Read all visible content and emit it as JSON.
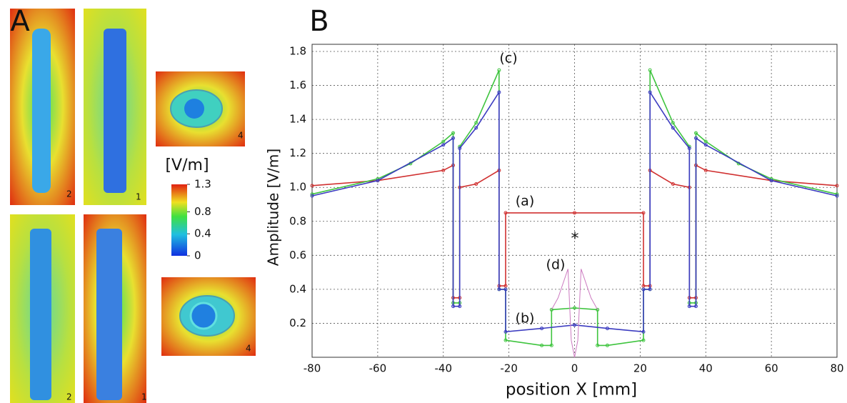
{
  "panel_a": {
    "label": "A",
    "colorbar": {
      "unit": "[V/m]",
      "lim": [
        0,
        1.3
      ],
      "ticks": [
        {
          "value": 1.3,
          "label": "1.3"
        },
        {
          "value": 0.8,
          "label": "0.8"
        },
        {
          "value": 0.4,
          "label": "0.4"
        },
        0
      ]
    },
    "image_labels": [
      "2",
      "1",
      "4",
      "2",
      "1",
      "4"
    ]
  },
  "chart_data": {
    "type": "line",
    "panel_label": "B",
    "x_label": "position X [mm]",
    "y_label": "Amplitude [V/m]",
    "xlim": [
      -80,
      80
    ],
    "xticks": [
      -80,
      -60,
      -40,
      -20,
      0,
      20,
      40,
      60,
      80
    ],
    "ylim": [
      0,
      1.8
    ],
    "yticks": [
      0.2,
      0.4,
      0.6,
      0.8,
      {
        "value": 1,
        "label": "1.0"
      },
      1.2,
      1.4,
      1.6,
      1.8
    ],
    "grid": true,
    "annotations": [
      "(a)",
      "(b)",
      "(c)",
      "(d)",
      "*"
    ],
    "series": [
      {
        "name": "(a)",
        "color": "#d03030",
        "x": [
          -80,
          -60,
          -40,
          -37,
          -37,
          -35,
          -35,
          -30,
          -23,
          -23,
          -21,
          -21,
          0,
          21,
          21,
          23,
          23,
          30,
          35,
          35,
          37,
          37,
          40,
          60,
          80
        ],
        "values": [
          1.01,
          1.04,
          1.1,
          1.13,
          0.35,
          0.35,
          1.0,
          1.02,
          1.1,
          0.42,
          0.42,
          0.85,
          0.85,
          0.85,
          0.42,
          0.42,
          1.1,
          1.02,
          1.0,
          0.35,
          0.35,
          1.13,
          1.1,
          1.04,
          1.01
        ]
      },
      {
        "name": "(c)",
        "color": "#3ec43e",
        "x": [
          -80,
          -60,
          -50,
          -40,
          -37,
          -37,
          -35,
          -35,
          -30,
          -23,
          -23,
          -21,
          -21,
          -10,
          -7,
          -7,
          0,
          7,
          7,
          10,
          21,
          21,
          23,
          23,
          30,
          35,
          35,
          37,
          37,
          40,
          50,
          60,
          80
        ],
        "values": [
          0.96,
          1.05,
          1.14,
          1.27,
          1.32,
          0.32,
          0.32,
          1.24,
          1.38,
          1.69,
          0.4,
          0.4,
          0.1,
          0.07,
          0.07,
          0.28,
          0.29,
          0.28,
          0.07,
          0.07,
          0.1,
          0.4,
          0.4,
          1.69,
          1.38,
          1.24,
          0.32,
          0.32,
          1.32,
          1.27,
          1.14,
          1.05,
          0.96
        ]
      },
      {
        "name": "(b)",
        "color": "#3b3bc0",
        "x": [
          -80,
          -60,
          -40,
          -37,
          -37,
          -35,
          -35,
          -30,
          -23,
          -23,
          -21,
          -21,
          -10,
          0,
          10,
          21,
          21,
          23,
          23,
          30,
          35,
          35,
          37,
          37,
          40,
          60,
          80
        ],
        "values": [
          0.95,
          1.04,
          1.25,
          1.29,
          0.3,
          0.3,
          1.23,
          1.35,
          1.56,
          0.4,
          0.4,
          0.15,
          0.17,
          0.19,
          0.17,
          0.15,
          0.4,
          0.4,
          1.56,
          1.35,
          1.23,
          0.3,
          0.3,
          1.29,
          1.25,
          1.04,
          0.95
        ]
      },
      {
        "name": "(d)",
        "color": "#cc7ac0",
        "x": [
          -7,
          -5,
          -2,
          -1,
          0,
          1,
          2,
          5,
          7
        ],
        "values": [
          0.28,
          0.35,
          0.52,
          0.1,
          0,
          0.1,
          0.52,
          0.35,
          0.28
        ]
      }
    ]
  }
}
